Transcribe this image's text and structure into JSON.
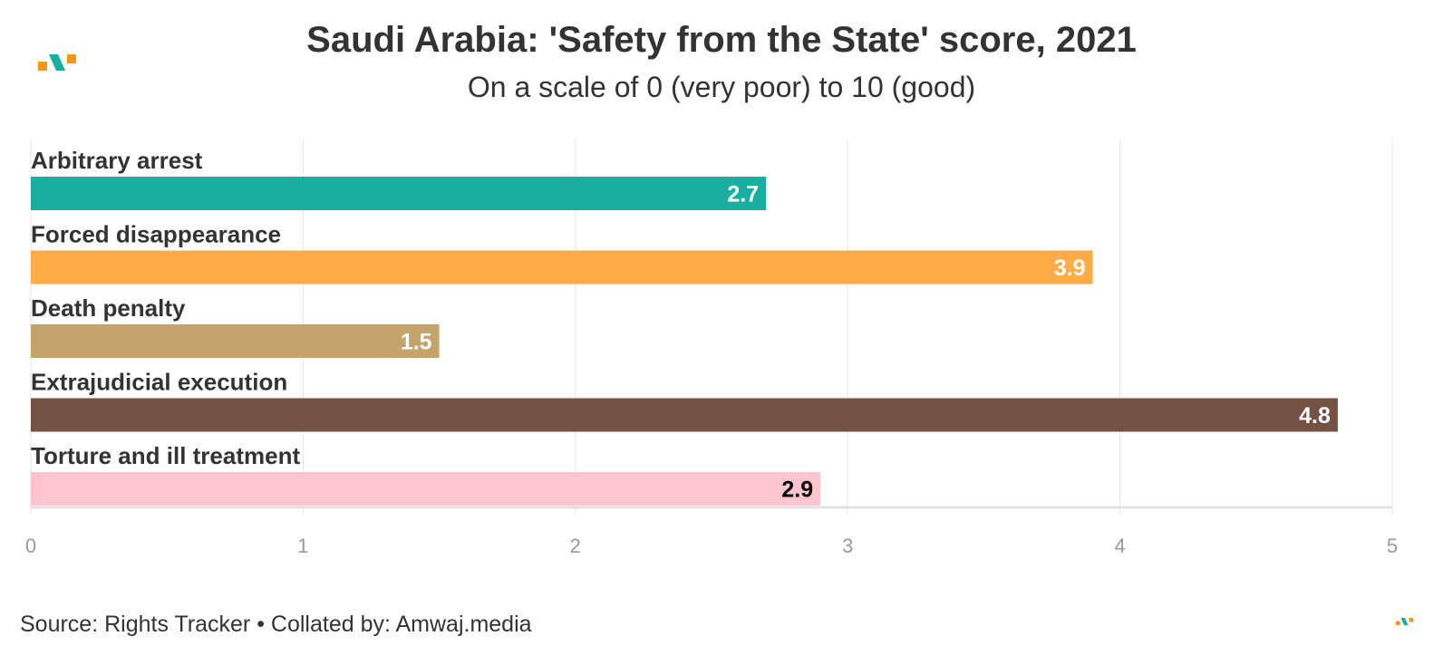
{
  "title": "Saudi Arabia: 'Safety from the State' score, 2021",
  "subtitle": "On a scale of 0 (very poor) to 10 (good)",
  "footer": "Source: Rights Tracker • Collated by: Amwaj.media",
  "logo_colors": {
    "orange": "#F7941D",
    "teal": "#1AAE9F"
  },
  "chart_data": {
    "type": "bar",
    "orientation": "horizontal",
    "title": "Saudi Arabia: 'Safety from the State' score, 2021",
    "subtitle": "On a scale of 0 (very poor) to 10 (good)",
    "categories": [
      "Arbitrary arrest",
      "Forced disappearance",
      "Death penalty",
      "Extrajudicial execution",
      "Torture and ill treatment"
    ],
    "values": [
      2.7,
      3.9,
      1.5,
      4.8,
      2.9
    ],
    "value_labels": [
      "2.7",
      "3.9",
      "1.5",
      "4.8",
      "2.9"
    ],
    "colors": [
      "#1AAE9F",
      "#FFAB47",
      "#C4A46A",
      "#735243",
      "#FFC5CF"
    ],
    "label_colors": [
      "#ffffff",
      "#ffffff",
      "#ffffff",
      "#ffffff",
      "#000000"
    ],
    "xlim": [
      0,
      5
    ],
    "xticks": [
      "0",
      "1",
      "2",
      "3",
      "4",
      "5"
    ],
    "grid": true,
    "legend": "none"
  }
}
